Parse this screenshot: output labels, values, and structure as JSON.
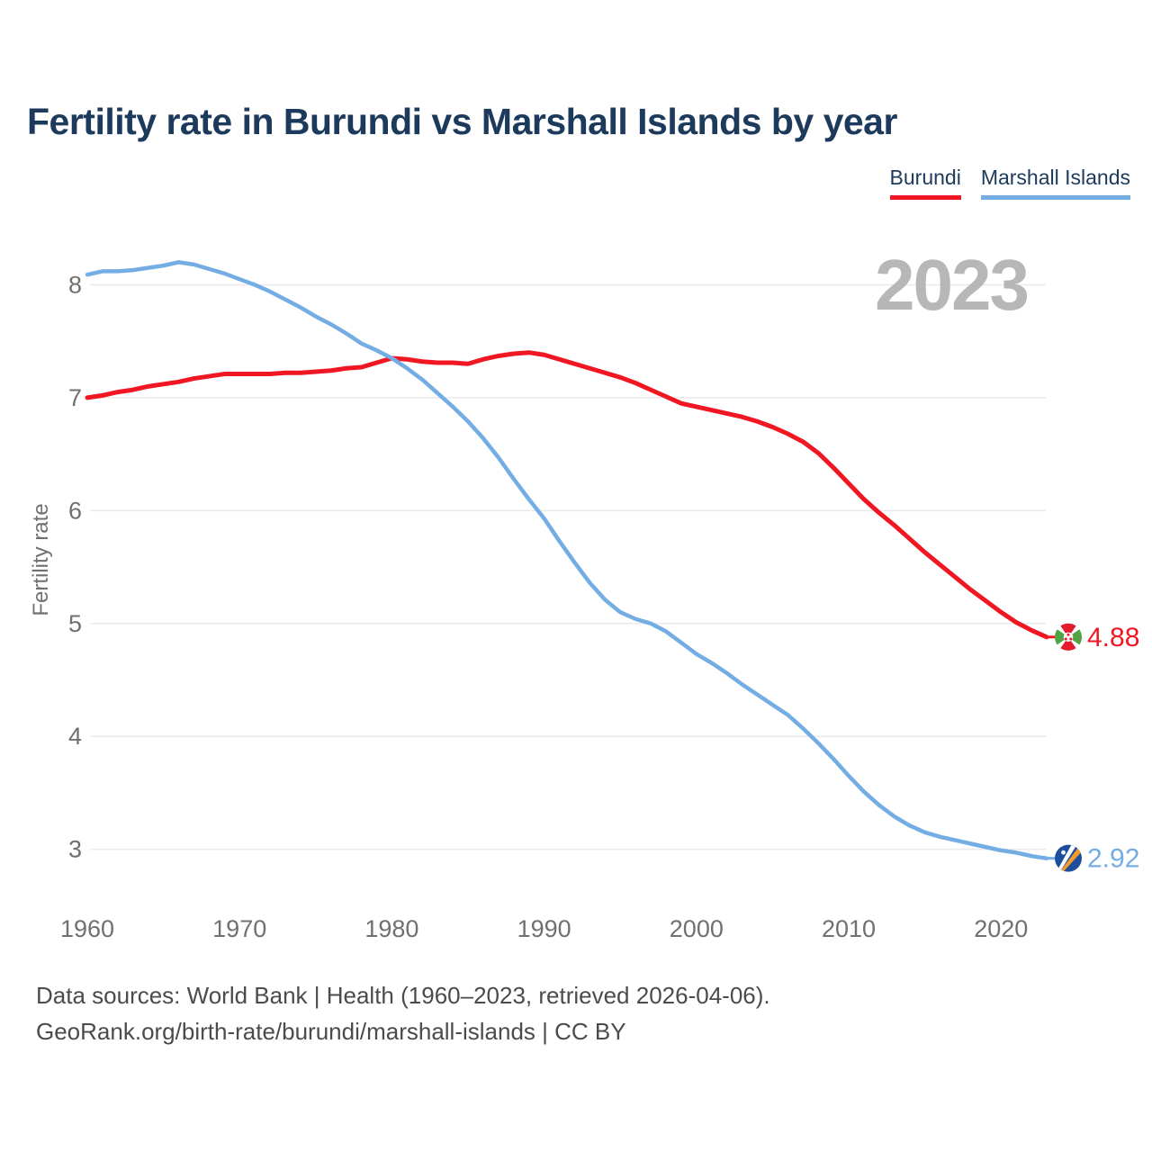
{
  "title": "Fertility rate in Burundi vs Marshall Islands by year",
  "legend": [
    {
      "label": "Burundi",
      "color": "#f01722"
    },
    {
      "label": "Marshall Islands",
      "color": "#74ade3"
    }
  ],
  "footer": {
    "line1": "Data sources: World Bank | Health (1960–2023, retrieved 2026-04-06).",
    "line2": "GeoRank.org/birth-rate/burundi/marshall-islands | CC BY"
  },
  "chart_data": {
    "type": "line",
    "title": "Fertility rate in Burundi vs Marshall Islands by year",
    "xlabel": "",
    "ylabel": "Fertility rate",
    "grid": "horizontal",
    "legend_position": "top-right",
    "watermark": "2023",
    "xlim": [
      1960,
      2023
    ],
    "ylim": [
      2.75,
      8.45
    ],
    "x_ticks": [
      1960,
      1970,
      1980,
      1990,
      2000,
      2010,
      2020
    ],
    "y_ticks": [
      3,
      4,
      5,
      6,
      7,
      8
    ],
    "x": [
      1960,
      1961,
      1962,
      1963,
      1964,
      1965,
      1966,
      1967,
      1968,
      1969,
      1970,
      1971,
      1972,
      1973,
      1974,
      1975,
      1976,
      1977,
      1978,
      1979,
      1980,
      1981,
      1982,
      1983,
      1984,
      1985,
      1986,
      1987,
      1988,
      1989,
      1990,
      1991,
      1992,
      1993,
      1994,
      1995,
      1996,
      1997,
      1998,
      1999,
      2000,
      2001,
      2002,
      2003,
      2004,
      2005,
      2006,
      2007,
      2008,
      2009,
      2010,
      2011,
      2012,
      2013,
      2014,
      2015,
      2016,
      2017,
      2018,
      2019,
      2020,
      2021,
      2022,
      2023
    ],
    "series": [
      {
        "name": "Burundi",
        "color": "#f01722",
        "end_value": 4.88,
        "end_label": "4.88",
        "values": [
          7.0,
          7.02,
          7.05,
          7.07,
          7.1,
          7.12,
          7.14,
          7.17,
          7.19,
          7.21,
          7.21,
          7.21,
          7.21,
          7.22,
          7.22,
          7.23,
          7.24,
          7.26,
          7.27,
          7.31,
          7.35,
          7.34,
          7.32,
          7.31,
          7.31,
          7.3,
          7.34,
          7.37,
          7.39,
          7.4,
          7.38,
          7.34,
          7.3,
          7.26,
          7.22,
          7.18,
          7.13,
          7.07,
          7.01,
          6.95,
          6.92,
          6.89,
          6.86,
          6.83,
          6.79,
          6.74,
          6.68,
          6.61,
          6.51,
          6.38,
          6.24,
          6.1,
          5.98,
          5.87,
          5.75,
          5.63,
          5.52,
          5.41,
          5.3,
          5.2,
          5.1,
          5.01,
          4.94,
          4.88
        ]
      },
      {
        "name": "Marshall Islands",
        "color": "#74ade3",
        "end_value": 2.92,
        "end_label": "2.92",
        "values": [
          8.09,
          8.12,
          8.12,
          8.13,
          8.15,
          8.17,
          8.2,
          8.18,
          8.14,
          8.1,
          8.05,
          8.0,
          7.94,
          7.87,
          7.8,
          7.72,
          7.65,
          7.57,
          7.48,
          7.42,
          7.35,
          7.26,
          7.16,
          7.04,
          6.92,
          6.79,
          6.64,
          6.47,
          6.28,
          6.1,
          5.93,
          5.73,
          5.54,
          5.36,
          5.21,
          5.1,
          5.04,
          5.0,
          4.93,
          4.83,
          4.73,
          4.65,
          4.56,
          4.46,
          4.37,
          4.28,
          4.19,
          4.07,
          3.94,
          3.8,
          3.65,
          3.51,
          3.39,
          3.29,
          3.21,
          3.15,
          3.11,
          3.08,
          3.05,
          3.02,
          2.99,
          2.97,
          2.94,
          2.92
        ]
      }
    ]
  }
}
